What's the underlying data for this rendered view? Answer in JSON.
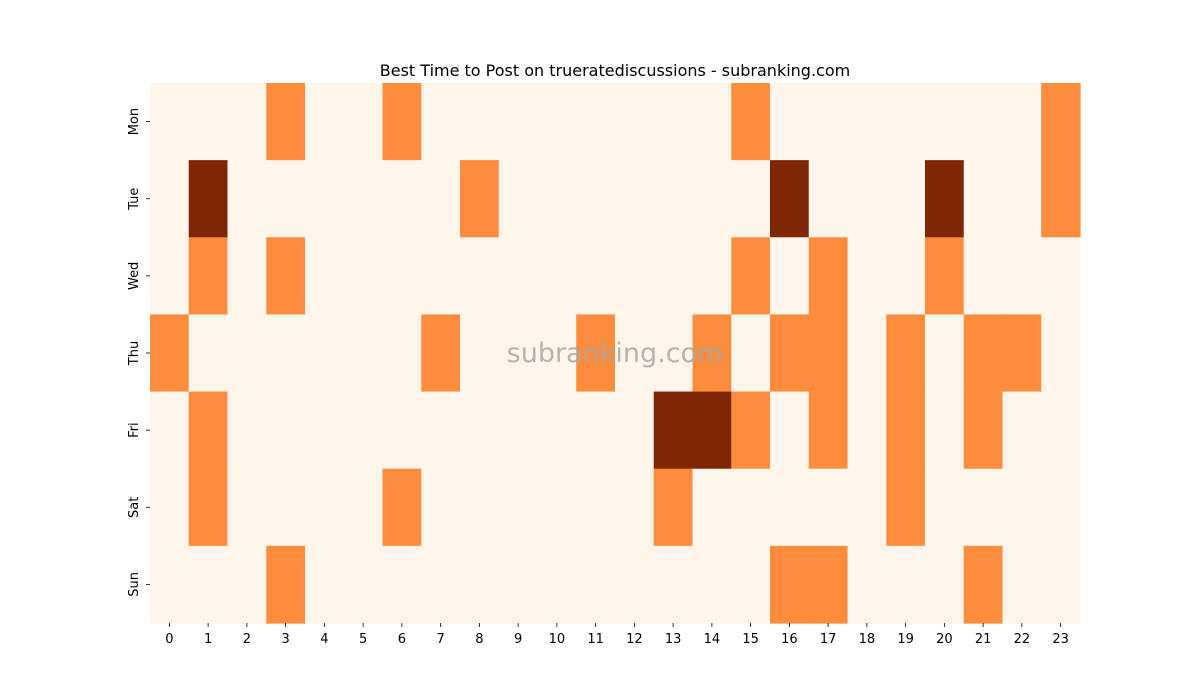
{
  "chart_data": {
    "type": "heatmap",
    "title": "Best Time to Post on trueratediscussions - subranking.com",
    "watermark": "subranking.com",
    "x_tick_labels": [
      "0",
      "1",
      "2",
      "3",
      "4",
      "5",
      "6",
      "7",
      "8",
      "9",
      "10",
      "11",
      "12",
      "13",
      "14",
      "15",
      "16",
      "17",
      "18",
      "19",
      "20",
      "21",
      "22",
      "23"
    ],
    "y_tick_labels": [
      "Mon",
      "Tue",
      "Wed",
      "Thu",
      "Fri",
      "Sat",
      "Sun"
    ],
    "values": [
      [
        0,
        0,
        0,
        1,
        0,
        0,
        1,
        0,
        0,
        0,
        0,
        0,
        0,
        0,
        0,
        1,
        0,
        0,
        0,
        0,
        0,
        0,
        0,
        1
      ],
      [
        0,
        2,
        0,
        0,
        0,
        0,
        0,
        0,
        1,
        0,
        0,
        0,
        0,
        0,
        0,
        0,
        2,
        0,
        0,
        0,
        2,
        0,
        0,
        1
      ],
      [
        0,
        1,
        0,
        1,
        0,
        0,
        0,
        0,
        0,
        0,
        0,
        0,
        0,
        0,
        0,
        1,
        0,
        1,
        0,
        0,
        1,
        0,
        0,
        0
      ],
      [
        1,
        0,
        0,
        0,
        0,
        0,
        0,
        1,
        0,
        0,
        0,
        1,
        0,
        0,
        1,
        0,
        1,
        1,
        0,
        1,
        0,
        1,
        1,
        0
      ],
      [
        0,
        1,
        0,
        0,
        0,
        0,
        0,
        0,
        0,
        0,
        0,
        0,
        0,
        2,
        2,
        1,
        0,
        1,
        0,
        1,
        0,
        1,
        0,
        0
      ],
      [
        0,
        1,
        0,
        0,
        0,
        0,
        1,
        0,
        0,
        0,
        0,
        0,
        0,
        1,
        0,
        0,
        0,
        0,
        0,
        1,
        0,
        0,
        0,
        0
      ],
      [
        0,
        0,
        0,
        1,
        0,
        0,
        0,
        0,
        0,
        0,
        0,
        0,
        0,
        0,
        0,
        0,
        1,
        1,
        0,
        0,
        0,
        1,
        0,
        0
      ]
    ],
    "colors": {
      "0": "#fff5eb",
      "1": "#fd8d3c",
      "2": "#7f2704"
    },
    "colormap": "Oranges",
    "grid": false
  }
}
